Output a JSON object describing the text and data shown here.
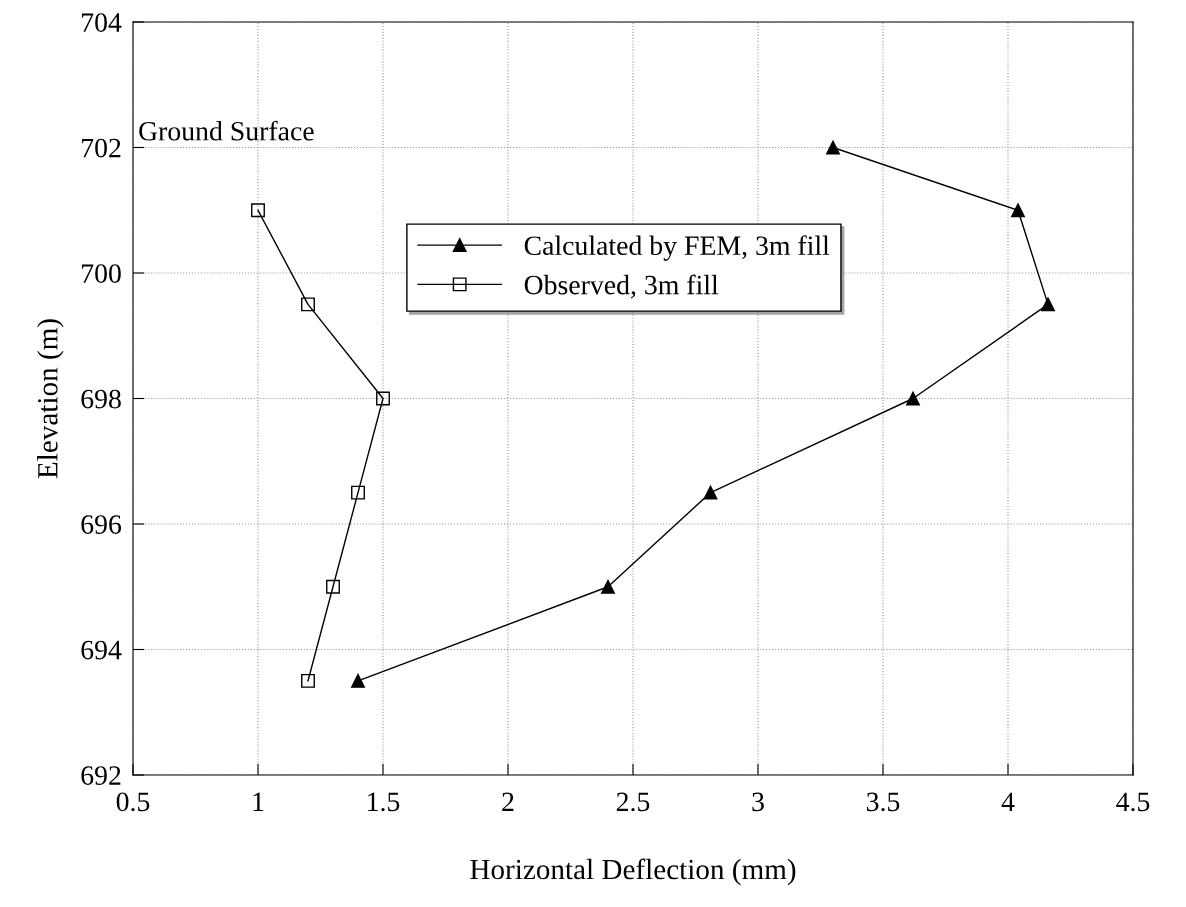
{
  "chart_data": {
    "type": "line",
    "xlabel": "Horizontal Deflection (mm)",
    "ylabel": "Elevation (m)",
    "series": [
      {
        "name": "Calculated by FEM, 3m fill",
        "color": "#000000",
        "marker": "triangle",
        "x": [
          3.3,
          4.04,
          4.16,
          3.62,
          2.81,
          2.4,
          1.4
        ],
        "values": [
          702,
          701,
          699.5,
          698,
          696.5,
          695,
          693.5
        ]
      },
      {
        "name": "Observed, 3m fill",
        "color": "#000000",
        "marker": "square",
        "x": [
          1.0,
          1.2,
          1.5,
          1.4,
          1.3,
          1.2
        ],
        "values": [
          701,
          699.5,
          698,
          696.5,
          695,
          693.5
        ]
      }
    ],
    "xlim": [
      0.5,
      4.5
    ],
    "xticks": [
      0.5,
      1,
      1.5,
      2,
      2.5,
      3,
      3.5,
      4,
      4.5
    ],
    "ylim": [
      692,
      704
    ],
    "yticks": [
      692,
      694,
      696,
      698,
      700,
      702,
      704
    ],
    "grid": true,
    "legend": "top center",
    "annotations": [
      "Ground Surface"
    ]
  }
}
